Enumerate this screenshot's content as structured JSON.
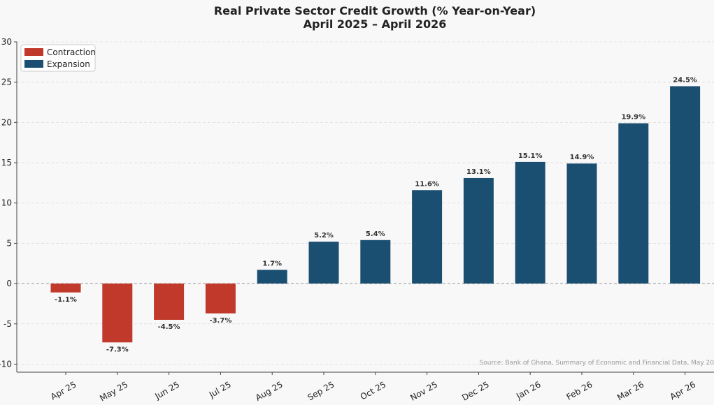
{
  "chart_data": {
    "type": "bar",
    "title": "Real Private Sector Credit Growth (% Year-on-Year)",
    "subtitle": "April 2025 – April 2026",
    "xlabel": "",
    "ylabel": "",
    "categories": [
      "Apr 25",
      "May 25",
      "Jun 25",
      "Jul 25",
      "Aug 25",
      "Sep 25",
      "Oct 25",
      "Nov 25",
      "Dec 25",
      "Jan 26",
      "Feb 26",
      "Mar 26",
      "Apr 26"
    ],
    "values": [
      -1.1,
      -7.3,
      -4.5,
      -3.7,
      1.7,
      5.2,
      5.4,
      11.6,
      13.1,
      15.1,
      14.9,
      19.9,
      24.5
    ],
    "data_labels": [
      "-1.1%",
      "-7.3%",
      "-4.5%",
      "-3.7%",
      "1.7%",
      "5.2%",
      "5.4%",
      "11.6%",
      "13.1%",
      "15.1%",
      "14.9%",
      "19.9%",
      "24.5%"
    ],
    "ylim": [
      -11,
      30
    ],
    "yticks": [
      -10,
      -5,
      0,
      5,
      10,
      15,
      20,
      25,
      30
    ],
    "grid": true,
    "legend_position": "top-left",
    "legend": [
      {
        "name": "Contraction",
        "color": "#c0392b"
      },
      {
        "name": "Expansion",
        "color": "#1b4f72"
      }
    ],
    "source": "Source: Bank of Ghana, Summary of Economic and Financial Data, May 20"
  }
}
